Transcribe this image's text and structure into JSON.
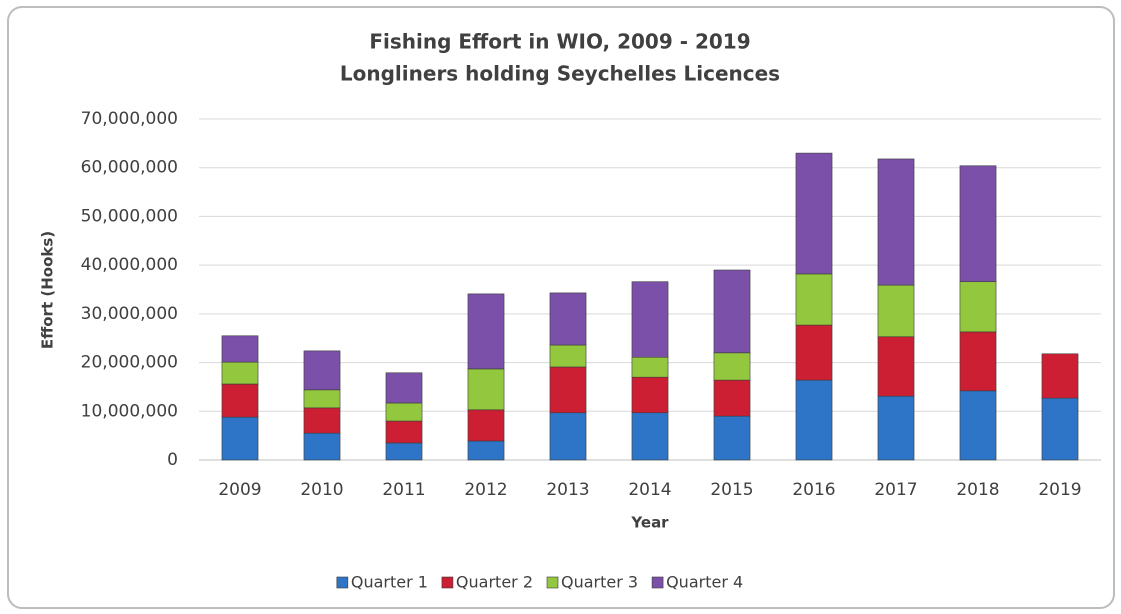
{
  "chart_data": {
    "type": "stacked_bar",
    "title": "Fishing Effort in WIO, 2009 - 2019",
    "subtitle": "Longliners holding Seychelles Licences",
    "x_label": "Year",
    "y_label": "Effort (Hooks)",
    "categories": [
      "2009",
      "2010",
      "2011",
      "2012",
      "2013",
      "2014",
      "2015",
      "2016",
      "2017",
      "2018",
      "2019"
    ],
    "series": [
      {
        "name": "Quarter 1",
        "color": "#2e75c8",
        "values": [
          8800000,
          5500000,
          3500000,
          3900000,
          9700000,
          9700000,
          9000000,
          16400000,
          13100000,
          14200000,
          12700000
        ]
      },
      {
        "name": "Quarter 2",
        "color": "#cc1f33",
        "values": [
          6800000,
          5200000,
          4500000,
          6400000,
          9400000,
          7300000,
          7400000,
          11300000,
          12200000,
          12100000,
          9100000
        ]
      },
      {
        "name": "Quarter 3",
        "color": "#93c83e",
        "values": [
          4500000,
          3700000,
          3700000,
          8400000,
          4500000,
          4100000,
          5600000,
          10500000,
          10600000,
          10300000,
          null
        ]
      },
      {
        "name": "Quarter 4",
        "color": "#7b50a8",
        "values": [
          5400000,
          8000000,
          6200000,
          15400000,
          10700000,
          15500000,
          17000000,
          24800000,
          25900000,
          23800000,
          null
        ]
      }
    ],
    "ylim": [
      0,
      70000000
    ],
    "yticks": [
      0,
      {
        "value": 10000000,
        "label": "10,000,000"
      },
      {
        "value": 20000000,
        "label": "20,000,000"
      },
      {
        "value": 30000000,
        "label": "30,000,000"
      },
      {
        "value": 40000000,
        "label": "40,000,000"
      },
      {
        "value": 50000000,
        "label": "50,000,000"
      },
      {
        "value": 60000000,
        "label": "60,000,000"
      },
      {
        "value": 70000000,
        "label": "70,000,000"
      }
    ],
    "grid": true,
    "legend": "bottom"
  }
}
